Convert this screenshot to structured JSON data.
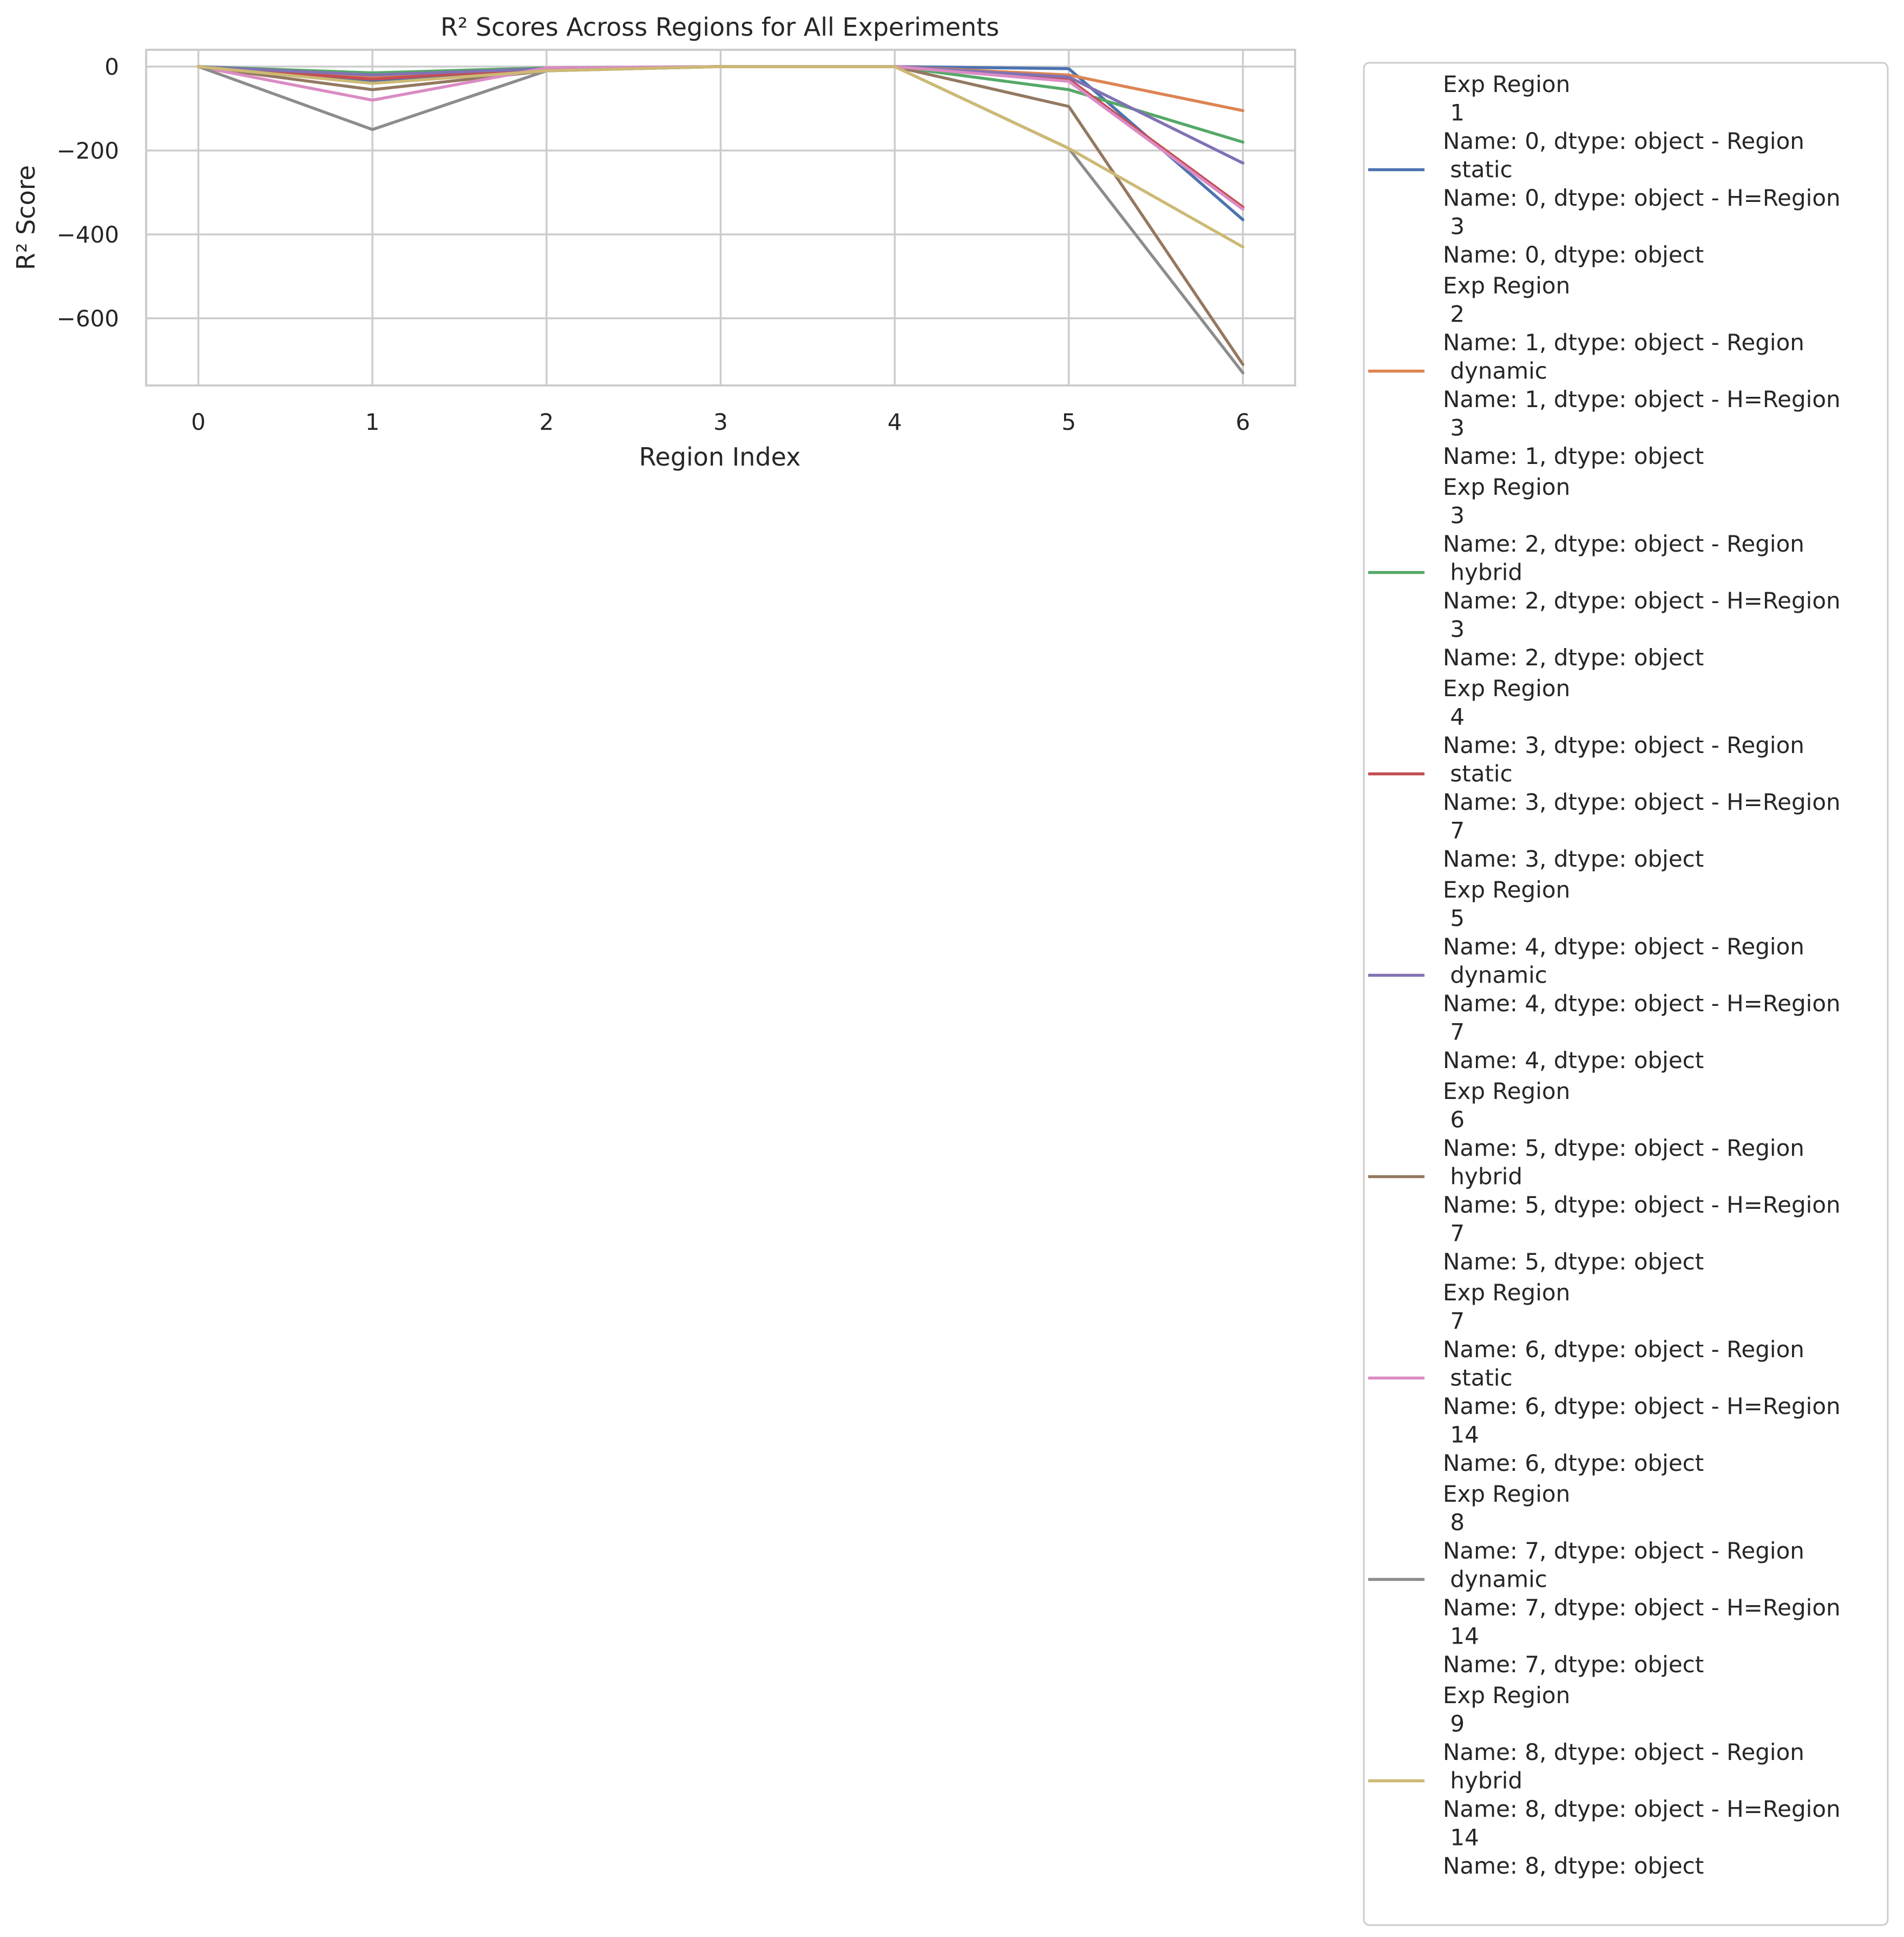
{
  "chart_data": {
    "type": "line",
    "title": "R² Scores Across Regions for All Experiments",
    "xlabel": "Region Index",
    "ylabel": "R² Score",
    "x": [
      0,
      1,
      2,
      3,
      4,
      5,
      6
    ],
    "xlim": [
      -0.3,
      6.3
    ],
    "ylim": [
      -760,
      40
    ],
    "yticks": [
      0,
      -200,
      -400,
      -600
    ],
    "grid": true,
    "legend_position": "outside right",
    "series": [
      {
        "name": "Exp Region\n    1\nName: 0, dtype: object - Region\n    static\nName: 0, dtype: object - H=Region\n    3\nName: 0, dtype: object",
        "color": "#4c72b0",
        "values": [
          0,
          -35,
          -5,
          0,
          0,
          -5,
          -365
        ]
      },
      {
        "name": "Exp Region\n    2\nName: 1, dtype: object - Region\n    dynamic\nName: 1, dtype: object - H=Region\n    3\nName: 1, dtype: object",
        "color": "#dd8452",
        "values": [
          0,
          -25,
          -5,
          0,
          0,
          -20,
          -105
        ]
      },
      {
        "name": "Exp Region\n    3\nName: 2, dtype: object - Region\n    hybrid\nName: 2, dtype: object - H=Region\n    3\nName: 2, dtype: object",
        "color": "#55a868",
        "values": [
          0,
          -15,
          -3,
          0,
          0,
          -55,
          -180
        ]
      },
      {
        "name": "Exp Region\n    4\nName: 3, dtype: object - Region\n    static\nName: 3, dtype: object - H=Region\n    7\nName: 3, dtype: object",
        "color": "#c44e52",
        "values": [
          0,
          -30,
          -5,
          0,
          0,
          -30,
          -335
        ]
      },
      {
        "name": "Exp Region\n    5\nName: 4, dtype: object - Region\n    dynamic\nName: 4, dtype: object - H=Region\n    7\nName: 4, dtype: object",
        "color": "#8172b3",
        "values": [
          0,
          -20,
          -5,
          0,
          0,
          -25,
          -230
        ]
      },
      {
        "name": "Exp Region\n    6\nName: 5, dtype: object - Region\n    hybrid\nName: 5, dtype: object - H=Region\n    7\nName: 5, dtype: object",
        "color": "#937860",
        "values": [
          0,
          -55,
          -10,
          0,
          0,
          -95,
          -710
        ]
      },
      {
        "name": "Exp Region\n    7\nName: 6, dtype: object - Region\n    static\nName: 6, dtype: object - H=Region\n    14\nName: 6, dtype: object",
        "color": "#da8bc3",
        "values": [
          0,
          -80,
          -3,
          0,
          0,
          -35,
          -340
        ]
      },
      {
        "name": "Exp Region\n    8\nName: 7, dtype: object - Region\n    dynamic\nName: 7, dtype: object - H=Region\n    14\nName: 7, dtype: object",
        "color": "#8c8c8c",
        "values": [
          0,
          -150,
          -10,
          0,
          0,
          -195,
          -730
        ]
      },
      {
        "name": "Exp Region\n    9\nName: 8, dtype: object - Region\n    hybrid\nName: 8, dtype: object - H=Region\n    14\nName: 8, dtype: object",
        "color": "#ccb974",
        "values": [
          0,
          -40,
          -10,
          0,
          0,
          -195,
          -430
        ]
      }
    ]
  }
}
